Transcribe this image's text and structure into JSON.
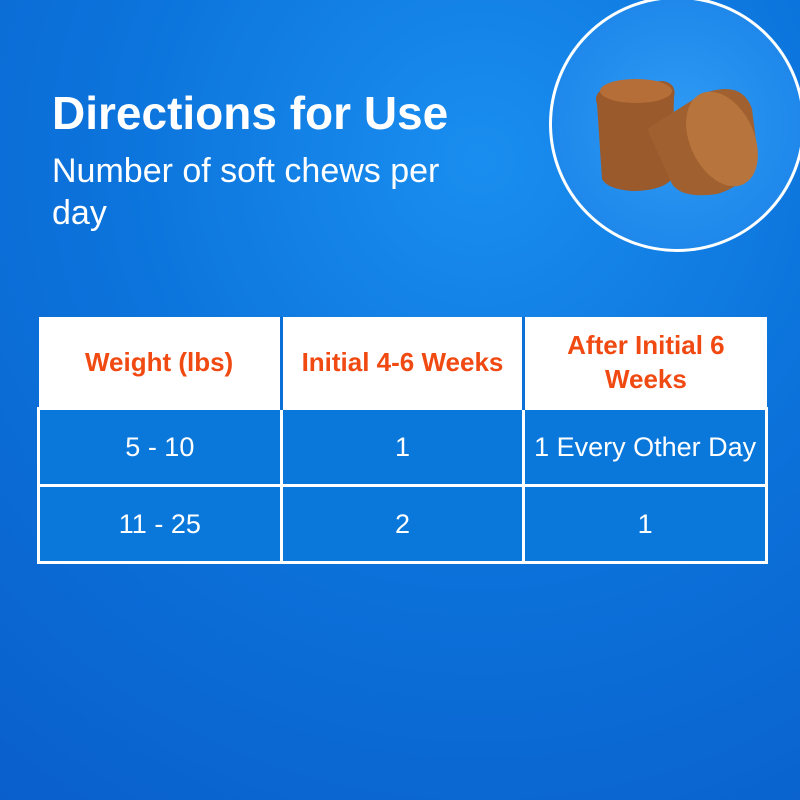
{
  "header": {
    "title": "Directions for Use",
    "subtitle": "Number of soft chews per day"
  },
  "image": {
    "icon": "soft-chews-image"
  },
  "table": {
    "columns": [
      "Weight (lbs)",
      "Initial 4-6 Weeks",
      "After Initial 6 Weeks"
    ],
    "rows": [
      [
        "5 - 10",
        "1",
        "1 Every Other Day"
      ],
      [
        "11 - 25",
        "2",
        "1"
      ]
    ]
  },
  "colors": {
    "background": "#0c74dc",
    "header_text": "#f04a12",
    "cell": "#0a78db"
  }
}
